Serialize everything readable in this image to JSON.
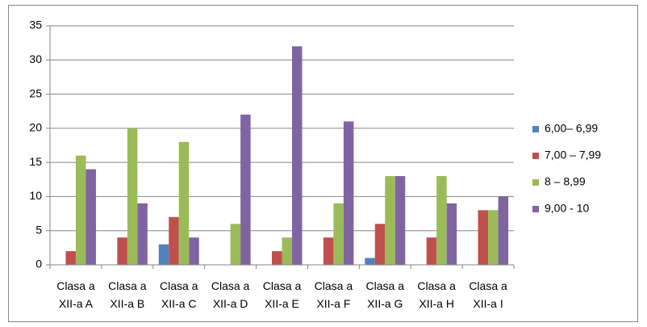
{
  "chart_data": {
    "type": "bar",
    "categories": [
      "Clasa a XII-a A",
      "Clasa a XII-a B",
      "Clasa a XII-a C",
      "Clasa a XII-a D",
      "Clasa a XII-a E",
      "Clasa a XII-a F",
      "Clasa a XII-a G",
      "Clasa a XII-a H",
      "Clasa a XII-a I"
    ],
    "series": [
      {
        "name": "6,00– 6,99",
        "color": "#4f81bd",
        "values": [
          0,
          0,
          3,
          0,
          0,
          0,
          1,
          0,
          0
        ]
      },
      {
        "name": "7,00 – 7,99",
        "color": "#c0504d",
        "values": [
          2,
          4,
          7,
          0,
          2,
          4,
          6,
          4,
          8
        ]
      },
      {
        "name": "8 – 8,99",
        "color": "#9bbb59",
        "values": [
          16,
          20,
          18,
          6,
          4,
          9,
          13,
          13,
          8
        ]
      },
      {
        "name": "9,00 - 10",
        "color": "#8064a2",
        "values": [
          14,
          9,
          4,
          22,
          32,
          21,
          13,
          9,
          10
        ]
      }
    ],
    "ylim": [
      0,
      35
    ],
    "yticks": [
      0,
      5,
      10,
      15,
      20,
      25,
      30,
      35
    ],
    "grid": true,
    "legend": "right"
  }
}
